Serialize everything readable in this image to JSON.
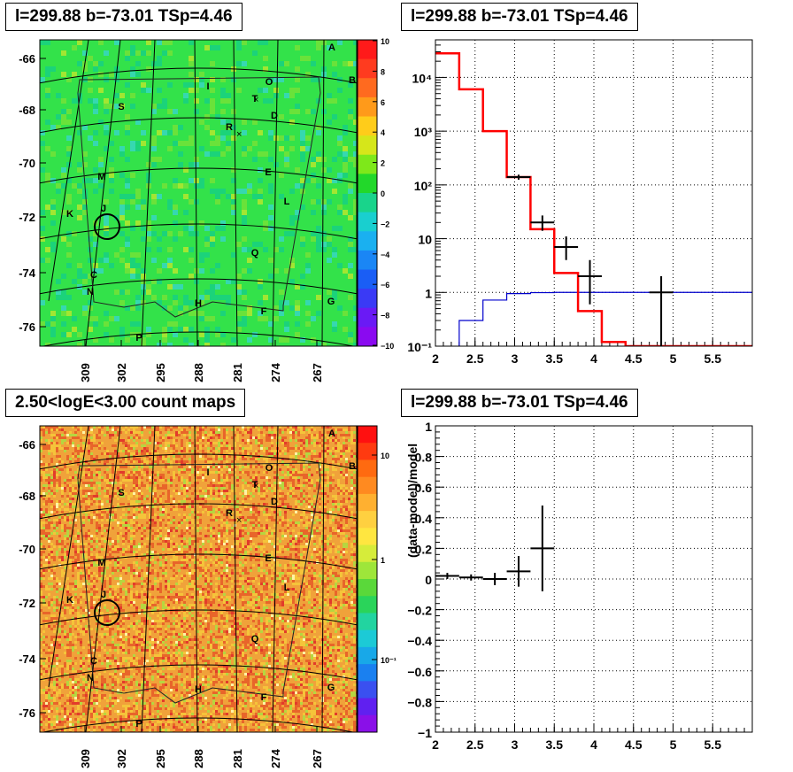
{
  "titles": {
    "tl": "l=299.88 b=-73.01 TSp=4.46",
    "tr": "l=299.88 b=-73.01 TSp=4.46",
    "bl": "2.50<logE<3.00 count maps",
    "br": "l=299.88 b=-73.01 TSp=4.46"
  },
  "colors": {
    "model": "#ff0000",
    "background": "#0000cc",
    "data": "#000000"
  },
  "map_axes": {
    "lon_ticks": [
      "309",
      "302",
      "295",
      "288",
      "281",
      "274",
      "267"
    ],
    "lat_ticks": [
      "-66",
      "-68",
      "-70",
      "-72",
      "-74",
      "-76"
    ]
  },
  "map_labels": [
    {
      "t": "A"
    },
    {
      "t": "B"
    },
    {
      "t": "I"
    },
    {
      "t": "O"
    },
    {
      "t": "T"
    },
    {
      "t": "S"
    },
    {
      "t": "D"
    },
    {
      "t": "R"
    },
    {
      "t": "M"
    },
    {
      "t": "E"
    },
    {
      "t": "K"
    },
    {
      "t": "J"
    },
    {
      "t": "L"
    },
    {
      "t": "Q"
    },
    {
      "t": "C"
    },
    {
      "t": "N"
    },
    {
      "t": "H"
    },
    {
      "t": "F"
    },
    {
      "t": "G"
    },
    {
      "t": "P"
    }
  ],
  "ts_colorbar": {
    "ticks": [
      "10",
      "8",
      "6",
      "4",
      "2",
      "0",
      "−2",
      "−4",
      "−6",
      "−8",
      "−10"
    ]
  },
  "count_colorbar": {
    "ticks": [
      "10",
      "1",
      "10⁻¹"
    ]
  },
  "chart_data": [
    {
      "type": "line",
      "title": "l=299.88 b=-73.01 TSp=4.46",
      "scale": "log-y",
      "xlim": [
        2,
        6
      ],
      "ylim": [
        0.1,
        50000
      ],
      "x_ticks": [
        "2",
        "2.5",
        "3",
        "3.5",
        "4",
        "4.5",
        "5",
        "5.5"
      ],
      "y_ticks": [
        "10⁻¹",
        "1",
        "10",
        "10²",
        "10³",
        "10⁴"
      ],
      "grid": true,
      "series": [
        {
          "role": "model",
          "edges": [
            2.0,
            2.3,
            2.6,
            2.9,
            3.2,
            3.5,
            3.8,
            4.1,
            4.4,
            6.0
          ],
          "values": [
            28000,
            6000,
            1000,
            140,
            15,
            2.3,
            0.45,
            0.12,
            0.1
          ]
        },
        {
          "role": "background",
          "edges": [
            2.0,
            2.3,
            2.6,
            2.9,
            3.2,
            3.5,
            3.8,
            4.1,
            4.4,
            6.0
          ],
          "values": [
            0.03,
            0.3,
            0.72,
            0.95,
            0.99,
            1.0,
            1.0,
            1.0,
            1.0
          ]
        },
        {
          "role": "data",
          "points": [
            {
              "x": 3.05,
              "y": 140,
              "xerr": 0.15,
              "ylo": 125,
              "yhi": 155
            },
            {
              "x": 3.35,
              "y": 20,
              "xerr": 0.15,
              "ylo": 14,
              "yhi": 27
            },
            {
              "x": 3.65,
              "y": 7,
              "xerr": 0.15,
              "ylo": 4,
              "yhi": 11
            },
            {
              "x": 3.95,
              "y": 2,
              "xerr": 0.15,
              "ylo": 0.6,
              "yhi": 4
            },
            {
              "x": 4.85,
              "y": 1,
              "xerr": 0.15,
              "ylo": 0.1,
              "yhi": 2
            }
          ]
        }
      ]
    },
    {
      "type": "scatter",
      "title": "l=299.88 b=-73.01 TSp=4.46",
      "ylabel": "(data-model)/model",
      "xlim": [
        2,
        6
      ],
      "ylim": [
        -1,
        1
      ],
      "x_ticks": [
        "2",
        "2.5",
        "3",
        "3.5",
        "4",
        "4.5",
        "5",
        "5.5"
      ],
      "y_ticks": [
        "1",
        "0.8",
        "0.6",
        "0.4",
        "0.2",
        "0",
        "−0.2",
        "−0.4",
        "−0.6",
        "−0.8",
        "−1"
      ],
      "grid": true,
      "points": [
        {
          "x": 2.15,
          "y": 0.02,
          "xerr": 0.15,
          "yerr": 0.02
        },
        {
          "x": 2.45,
          "y": 0.01,
          "xerr": 0.15,
          "yerr": 0.02
        },
        {
          "x": 2.75,
          "y": 0.0,
          "xerr": 0.15,
          "yerr": 0.04
        },
        {
          "x": 3.05,
          "y": 0.05,
          "xerr": 0.15,
          "yerr": 0.1
        },
        {
          "x": 3.35,
          "y": 0.2,
          "xerr": 0.15,
          "yerr": 0.28
        }
      ]
    }
  ]
}
